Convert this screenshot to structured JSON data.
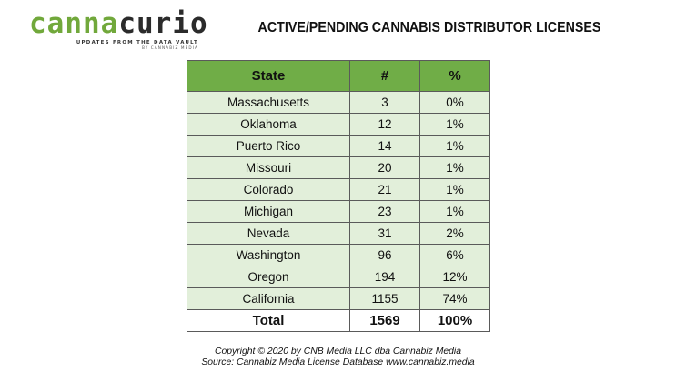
{
  "logo": {
    "word_part_a": "canna",
    "word_part_b": "curio",
    "tagline": "UPDATES FROM THE DATA VAULT",
    "byline": "BY CANNABIZ MEDIA",
    "colors": {
      "part_a": "#71a83b",
      "part_b": "#2b2b2b"
    }
  },
  "title": "ACTIVE/PENDING CANNABIS DISTRIBUTOR LICENSES",
  "chart_data": {
    "type": "table",
    "title": "ACTIVE/PENDING CANNABIS DISTRIBUTOR LICENSES",
    "columns": [
      "State",
      "#",
      "%"
    ],
    "rows": [
      [
        "Massachusetts",
        "3",
        "0%"
      ],
      [
        "Oklahoma",
        "12",
        "1%"
      ],
      [
        "Puerto Rico",
        "14",
        "1%"
      ],
      [
        "Missouri",
        "20",
        "1%"
      ],
      [
        "Colorado",
        "21",
        "1%"
      ],
      [
        "Michigan",
        "23",
        "1%"
      ],
      [
        "Nevada",
        "31",
        "2%"
      ],
      [
        "Washington",
        "96",
        "6%"
      ],
      [
        "Oregon",
        "194",
        "12%"
      ],
      [
        "California",
        "1155",
        "74%"
      ]
    ],
    "total": [
      "Total",
      "1569",
      "100%"
    ],
    "colors": {
      "header": "#70ad47",
      "row": "#e2efda",
      "total": "#ffffff"
    }
  },
  "footer": {
    "copyright": "Copyright © 2020 by CNB Media LLC dba Cannabiz Media",
    "source": "Source: Cannabiz Media License Database www.cannabiz.media"
  }
}
